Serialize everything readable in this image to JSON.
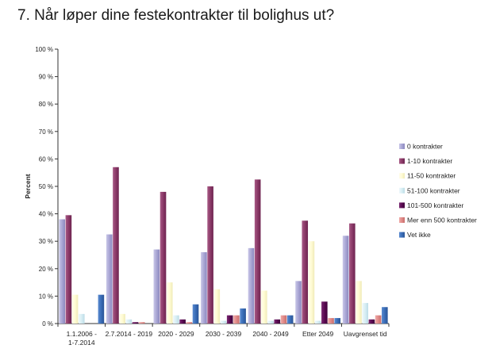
{
  "chart_data": {
    "type": "bar",
    "title": "7. Når løper dine festekontrakter til bolighus ut?",
    "ylabel": "Percent",
    "xlabel": "",
    "ylim": [
      0,
      100
    ],
    "yticks": [
      "0 %",
      "10 %",
      "20 %",
      "30 %",
      "40 %",
      "50 %",
      "60 %",
      "70 %",
      "80 %",
      "90 %",
      "100 %"
    ],
    "grid": false,
    "legend_position": "right",
    "categories": [
      [
        "1.1.2006 -",
        "1-7.2014"
      ],
      [
        "2.7.2014 - 2019"
      ],
      [
        "2020 - 2029"
      ],
      [
        "2030 - 2039"
      ],
      [
        "2040 - 2049"
      ],
      [
        "Etter 2049"
      ],
      [
        "Uavgrenset tid"
      ]
    ],
    "series": [
      {
        "name": "0 kontrakter",
        "color": "#a9a6d4",
        "values": [
          38,
          32.5,
          27,
          26,
          27.5,
          15.5,
          32
        ]
      },
      {
        "name": "1-10 kontrakter",
        "color": "#8b3a68",
        "values": [
          39.5,
          57,
          48,
          50,
          52.5,
          37.5,
          36.5
        ]
      },
      {
        "name": "11-50 kontrakter",
        "color": "#fffbd4",
        "values": [
          10.5,
          3.5,
          15,
          12.5,
          12,
          30,
          15.5
        ]
      },
      {
        "name": "51-100 kontrakter",
        "color": "#d8eef4",
        "values": [
          3.5,
          1.5,
          3,
          1,
          1,
          1,
          7.5
        ]
      },
      {
        "name": "101-500 kontrakter",
        "color": "#5a0a52",
        "values": [
          0,
          0.5,
          1.5,
          3,
          1.5,
          8,
          1.5
        ]
      },
      {
        "name": "Mer enn 500 kontrakter",
        "color": "#e08a88",
        "values": [
          0,
          0.5,
          0.5,
          3,
          3,
          2,
          3
        ]
      },
      {
        "name": "Vet ikke",
        "color": "#3a6db7",
        "values": [
          10.5,
          0,
          7,
          5.5,
          3,
          2,
          6
        ]
      }
    ]
  }
}
